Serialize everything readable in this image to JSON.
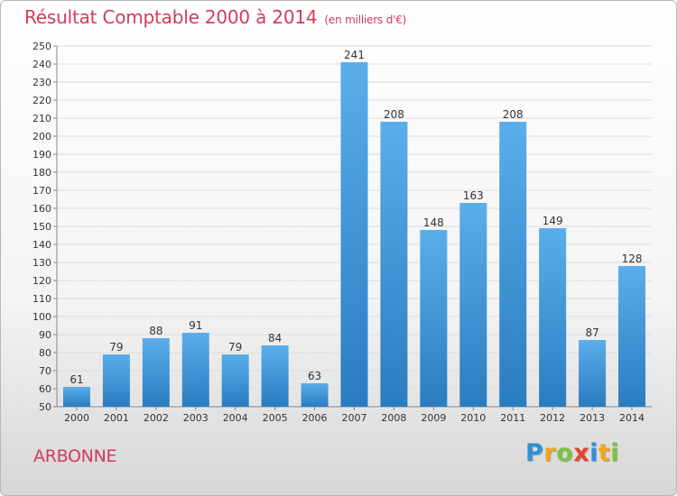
{
  "chart_data": {
    "type": "bar",
    "title": "Résultat Comptable 2000 à 2014",
    "subtitle": "(en milliers d'€)",
    "categories": [
      "2000",
      "2001",
      "2002",
      "2003",
      "2004",
      "2005",
      "2006",
      "2007",
      "2008",
      "2009",
      "2010",
      "2011",
      "2012",
      "2013",
      "2014"
    ],
    "values": [
      61,
      79,
      88,
      91,
      79,
      84,
      63,
      241,
      208,
      148,
      163,
      208,
      149,
      87,
      128
    ],
    "ylim": [
      50,
      250
    ],
    "ytick_step": 10,
    "xlabel": "",
    "ylabel": "",
    "grid": true,
    "bar_color_light": "#5aaeea",
    "bar_color_dark": "#2a7cc0"
  },
  "footer": {
    "commune": "ARBONNE",
    "logo_letters": [
      {
        "char": "P",
        "color": "#2f8fd8"
      },
      {
        "char": "r",
        "color": "#f2a51c"
      },
      {
        "char": "o",
        "color": "#7dc243"
      },
      {
        "char": "x",
        "color": "#e8432e"
      },
      {
        "char": "i",
        "color": "#2f8fd8"
      },
      {
        "char": "t",
        "color": "#f2a51c"
      },
      {
        "char": "i",
        "color": "#7dc243"
      }
    ]
  }
}
